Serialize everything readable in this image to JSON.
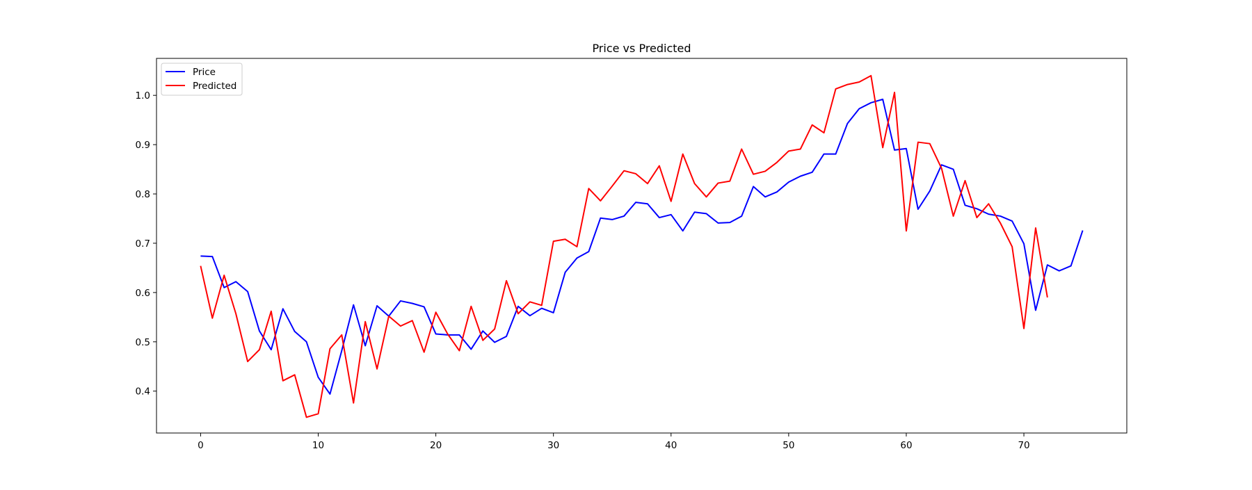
{
  "chart_data": {
    "type": "line",
    "title": "Price vs Predicted",
    "xlabel": "",
    "ylabel": "",
    "xlim": [
      -3.75,
      78.75
    ],
    "ylim": [
      0.315,
      1.075
    ],
    "x_ticks": [
      0,
      10,
      20,
      30,
      40,
      50,
      60,
      70
    ],
    "x_tick_labels": [
      "0",
      "10",
      "20",
      "30",
      "40",
      "50",
      "60",
      "70"
    ],
    "y_ticks": [
      0.4,
      0.5,
      0.6,
      0.7,
      0.8,
      0.9,
      1.0
    ],
    "y_tick_labels": [
      "0.4",
      "0.5",
      "0.6",
      "0.7",
      "0.8",
      "0.9",
      "1.0"
    ],
    "grid": false,
    "legend": {
      "placement": "upper-left",
      "entries": [
        "Price",
        "Predicted"
      ]
    },
    "series": [
      {
        "name": "Price",
        "color": "#0000ff",
        "values": [
          0.674,
          0.673,
          0.61,
          0.622,
          0.602,
          0.522,
          0.484,
          0.567,
          0.521,
          0.5,
          0.428,
          0.394,
          0.482,
          0.575,
          0.492,
          0.573,
          0.552,
          0.583,
          0.578,
          0.571,
          0.516,
          0.514,
          0.514,
          0.485,
          0.522,
          0.499,
          0.511,
          0.572,
          0.553,
          0.568,
          0.559,
          0.641,
          0.67,
          0.683,
          0.751,
          0.748,
          0.755,
          0.783,
          0.78,
          0.752,
          0.758,
          0.725,
          0.763,
          0.76,
          0.741,
          0.742,
          0.755,
          0.815,
          0.794,
          0.804,
          0.824,
          0.836,
          0.844,
          0.881,
          0.881,
          0.943,
          0.973,
          0.985,
          0.992,
          0.889,
          0.892,
          0.769,
          0.806,
          0.859,
          0.85,
          0.777,
          0.77,
          0.759,
          0.755,
          0.745,
          0.699,
          0.564,
          0.656,
          0.644,
          0.654,
          0.726
        ]
      },
      {
        "name": "Predicted",
        "color": "#ff0000",
        "values": [
          0.654,
          0.548,
          0.635,
          0.557,
          0.46,
          0.484,
          0.562,
          0.421,
          0.433,
          0.347,
          0.354,
          0.486,
          0.514,
          0.376,
          0.541,
          0.445,
          0.552,
          0.532,
          0.543,
          0.479,
          0.56,
          0.516,
          0.482,
          0.572,
          0.503,
          0.526,
          0.624,
          0.557,
          0.581,
          0.574,
          0.704,
          0.708,
          0.693,
          0.811,
          0.786,
          0.816,
          0.847,
          0.841,
          0.821,
          0.857,
          0.785,
          0.881,
          0.821,
          0.794,
          0.822,
          0.826,
          0.891,
          0.84,
          0.846,
          0.864,
          0.887,
          0.891,
          0.94,
          0.924,
          1.013,
          1.022,
          1.027,
          1.04,
          0.894,
          1.006,
          0.725,
          0.905,
          0.902,
          0.852,
          0.755,
          0.827,
          0.752,
          0.78,
          0.741,
          0.693,
          0.527,
          0.731,
          0.59
        ]
      }
    ]
  }
}
